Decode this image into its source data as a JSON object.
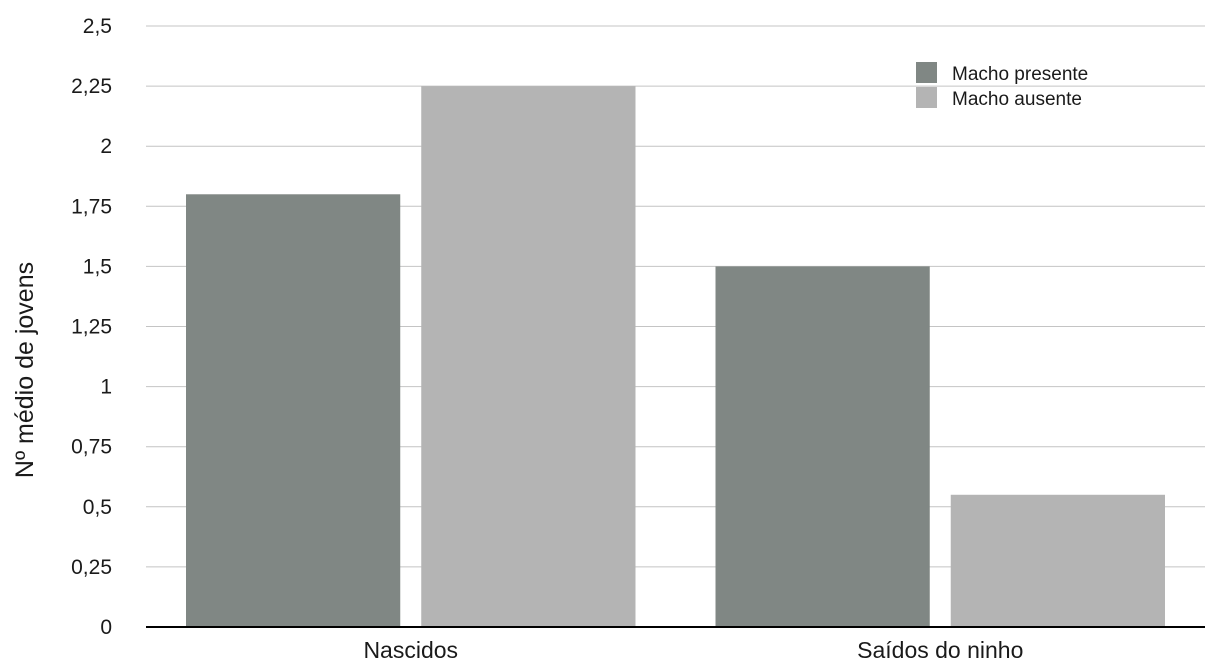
{
  "chart_data": {
    "type": "bar",
    "title": "",
    "xlabel": "",
    "ylabel": "Nº médio de jovens",
    "categories": [
      "Nascidos",
      "Saídos do ninho"
    ],
    "series": [
      {
        "name": "Macho presente",
        "color": "#808784",
        "values": [
          1.8,
          1.5
        ]
      },
      {
        "name": "Macho ausente",
        "color": "#b4b4b4",
        "values": [
          2.25,
          0.55
        ]
      }
    ],
    "ylim": [
      0,
      2.5
    ],
    "yticks": [
      0,
      0.25,
      0.5,
      0.75,
      1,
      1.25,
      1.5,
      1.75,
      2,
      2.25,
      2.5
    ],
    "ytick_labels": [
      "0",
      "0,25",
      "0,5",
      "0,75",
      "1",
      "1,25",
      "1,5",
      "1,75",
      "2",
      "2,25",
      "2,5"
    ],
    "grid": true,
    "legend_position": "top-right"
  }
}
